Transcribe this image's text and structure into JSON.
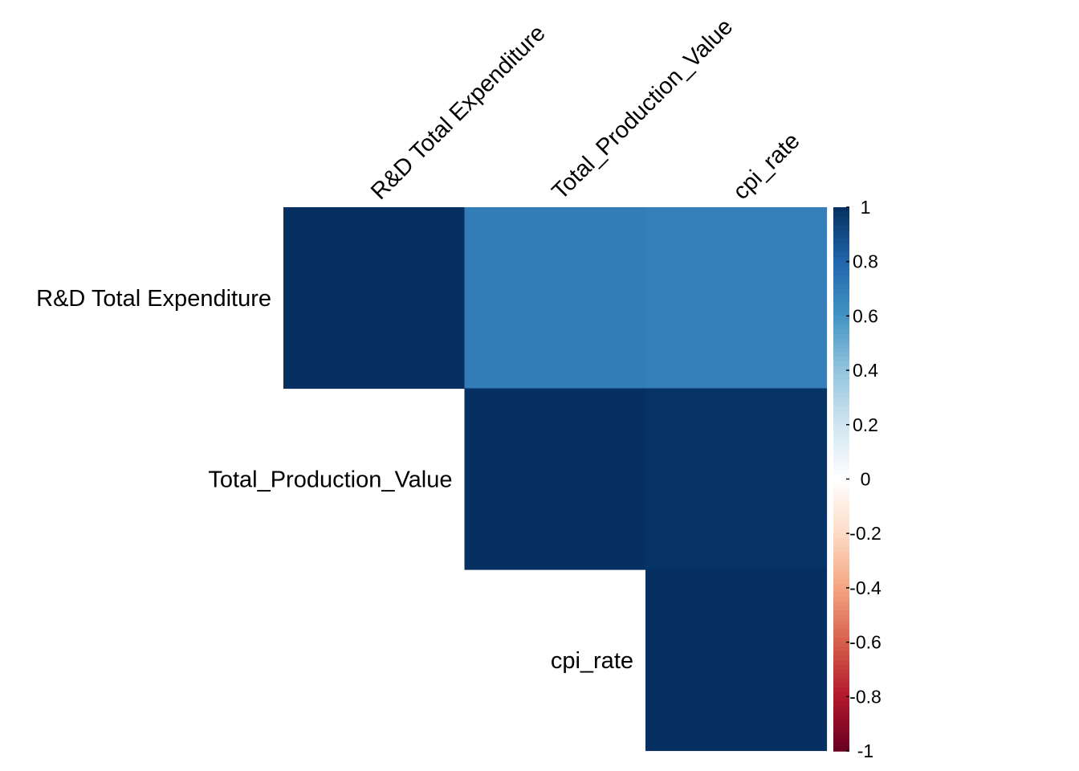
{
  "chart_data": {
    "type": "heatmap",
    "variables": [
      "R&D Total Expenditure",
      "Total_Production_Value",
      "cpi_rate"
    ],
    "layout": "upper-triangle",
    "cells": [
      {
        "row": "R&D Total Expenditure",
        "col": "R&D Total Expenditure",
        "value": 1.0
      },
      {
        "row": "R&D Total Expenditure",
        "col": "Total_Production_Value",
        "value": 0.7
      },
      {
        "row": "R&D Total Expenditure",
        "col": "cpi_rate",
        "value": 0.69
      },
      {
        "row": "Total_Production_Value",
        "col": "Total_Production_Value",
        "value": 1.0
      },
      {
        "row": "Total_Production_Value",
        "col": "cpi_rate",
        "value": 0.99
      },
      {
        "row": "cpi_rate",
        "col": "cpi_rate",
        "value": 1.0
      }
    ],
    "colorbar": {
      "range": [
        -1,
        1
      ],
      "tick_labels": [
        "1",
        "0.8",
        "0.6",
        "0.4",
        "0.2",
        "0",
        "-0.2",
        "-0.4",
        "-0.6",
        "-0.8",
        "-1"
      ],
      "colors": [
        "#67001f",
        "#b2182b",
        "#d6604d",
        "#f4a582",
        "#fddbc7",
        "#ffffff",
        "#d1e5f0",
        "#92c5de",
        "#4393c3",
        "#2166ac",
        "#053061"
      ]
    }
  }
}
